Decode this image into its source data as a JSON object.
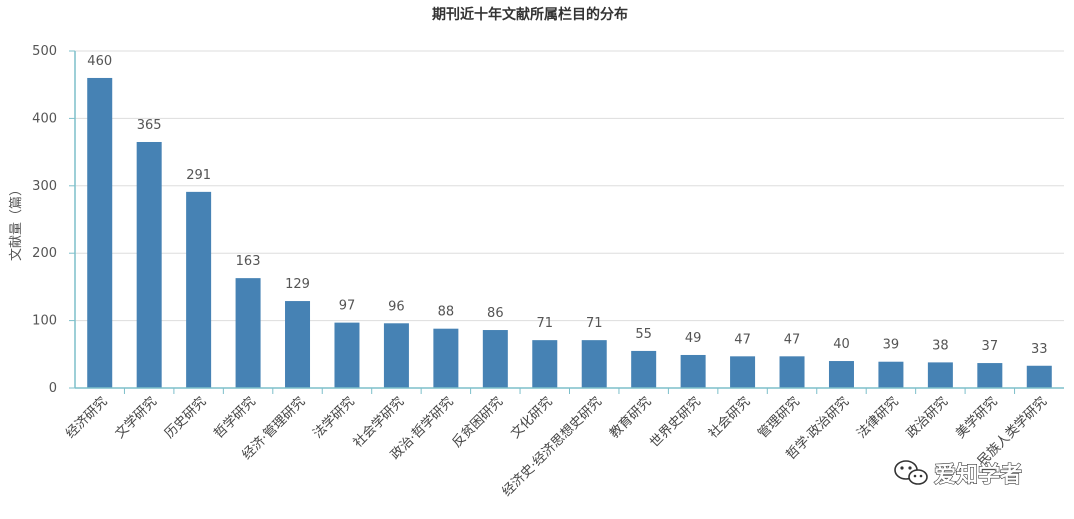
{
  "chart_data": {
    "type": "bar",
    "title": "期刊近十年文献所属栏目的分布",
    "ylabel": "文献量（篇）",
    "xlabel": "",
    "ylim": [
      0,
      500
    ],
    "yticks": [
      0,
      100,
      200,
      300,
      400,
      500
    ],
    "grid": true,
    "bar_color": "#4682b4",
    "categories": [
      "经济研究",
      "文学研究",
      "历史研究",
      "哲学研究",
      "经济·管理研究",
      "法学研究",
      "社会学研究",
      "政治·哲学研究",
      "反贫困研究",
      "文化研究",
      "经济史·经济思想史研究",
      "教育研究",
      "世界史研究",
      "社会研究",
      "管理研究",
      "哲学·政治研究",
      "法律研究",
      "政治研究",
      "美学研究",
      "民族人类学研究"
    ],
    "values": [
      460,
      365,
      291,
      163,
      129,
      97,
      96,
      88,
      86,
      71,
      71,
      55,
      49,
      47,
      47,
      40,
      39,
      38,
      37,
      33
    ]
  },
  "watermark": {
    "text": "爱知学者",
    "icon": "wechat-icon"
  }
}
